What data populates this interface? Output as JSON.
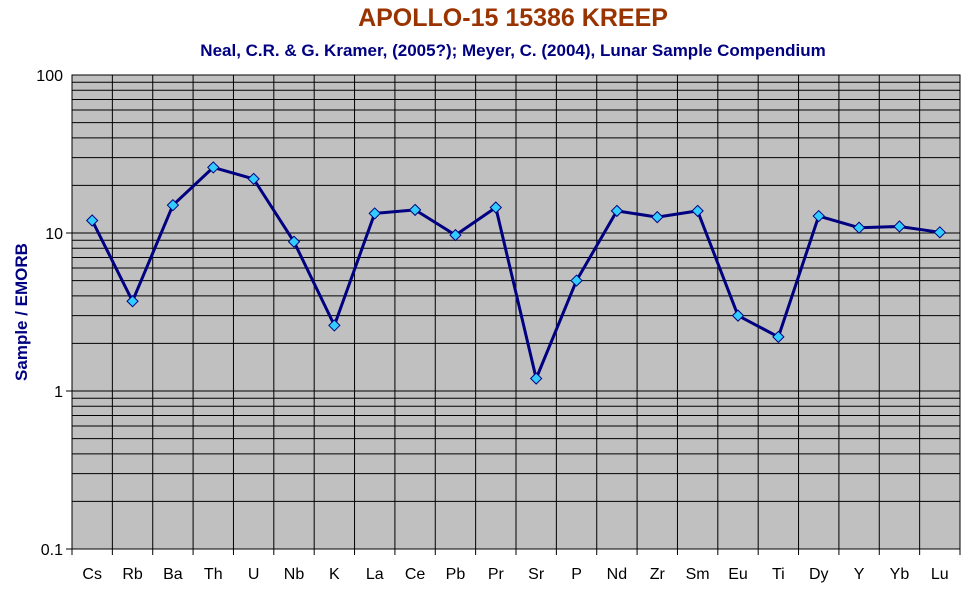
{
  "colors": {
    "title": "#993300",
    "subtitle": "#000080",
    "ylabel": "#000080",
    "plot_bg": "#c0c0c0",
    "grid": "#000000",
    "line": "#000080",
    "marker": "#33ccff"
  },
  "chart_data": {
    "type": "line",
    "title": "APOLLO-15 15386 KREEP",
    "subtitle": "Neal, C.R. & G. Kramer, (2005?); Meyer, C. (2004), Lunar Sample Compendium",
    "xlabel": "",
    "ylabel": "Sample / EMORB",
    "yscale": "log",
    "ylim": [
      0.1,
      100
    ],
    "yticks": [
      {
        "value": 100,
        "label": "100"
      },
      {
        "value": 10,
        "label": "10"
      },
      {
        "value": 1,
        "label": "1"
      },
      {
        "value": 0.1,
        "label": "0.1"
      }
    ],
    "grid": true,
    "categories": [
      "Cs",
      "Rb",
      "Ba",
      "Th",
      "U",
      "Nb",
      "K",
      "La",
      "Ce",
      "Pb",
      "Pr",
      "Sr",
      "P",
      "Nd",
      "Zr",
      "Sm",
      "Eu",
      "Ti",
      "Dy",
      "Y",
      "Yb",
      "Lu"
    ],
    "series": [
      {
        "values": [
          12,
          3.7,
          15,
          26,
          22,
          8.8,
          2.6,
          13.3,
          14,
          9.7,
          14.5,
          1.2,
          5,
          13.8,
          12.6,
          13.8,
          3,
          2.2,
          12.8,
          10.8,
          11,
          10.1
        ]
      }
    ]
  }
}
